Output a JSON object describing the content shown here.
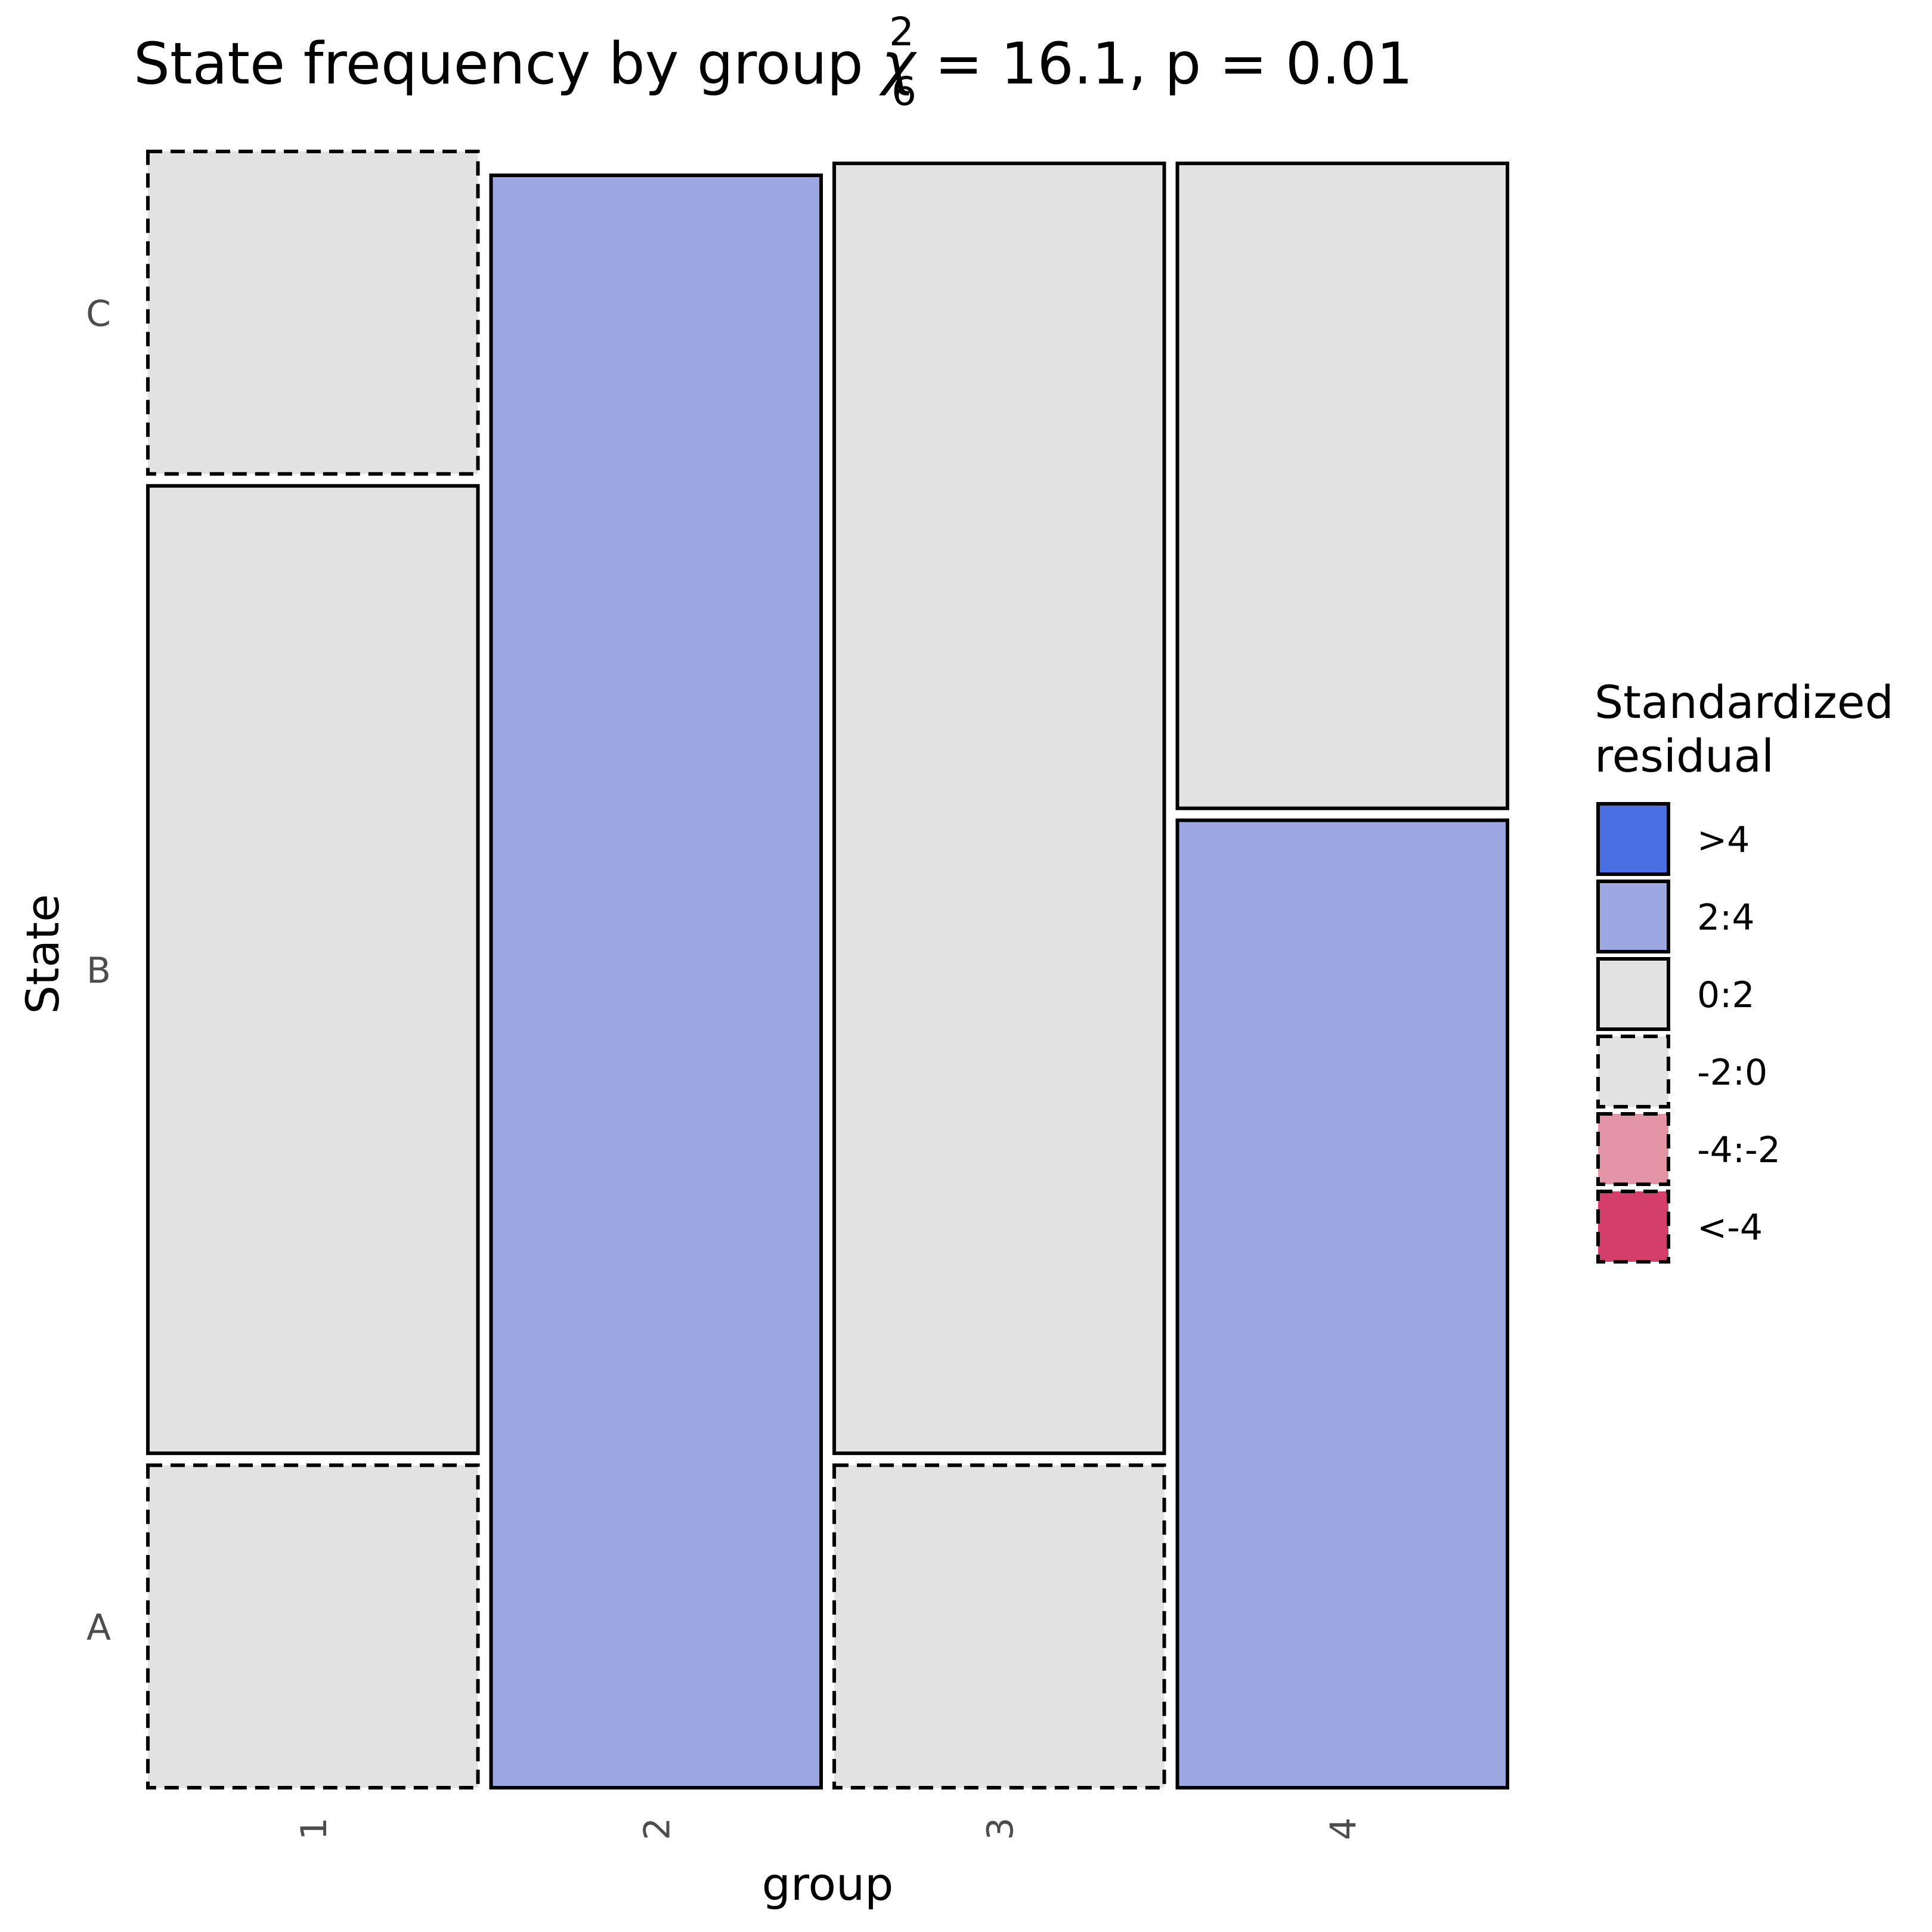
{
  "chart_data": {
    "type": "mosaic",
    "title": {
      "main": "State frequency by group",
      "stat_symbol": "χ",
      "stat_superscript": "2",
      "stat_subscript": "6",
      "stat_equals": " =  16.1, p = 0.01"
    },
    "xlabel": "group",
    "ylabel": "State",
    "x_categories": [
      "1",
      "2",
      "3",
      "4"
    ],
    "y_categories": [
      "A",
      "B",
      "C"
    ],
    "column_proportions": [
      0.25,
      0.25,
      0.25,
      0.25
    ],
    "cells": [
      {
        "group": "1",
        "state": "A",
        "proportion": 0.2,
        "residual_class": "-2:0"
      },
      {
        "group": "1",
        "state": "B",
        "proportion": 0.6,
        "residual_class": "0:2"
      },
      {
        "group": "1",
        "state": "C",
        "proportion": 0.2,
        "residual_class": "-2:0"
      },
      {
        "group": "2",
        "state": "A",
        "proportion": 1.0,
        "residual_class": "2:4"
      },
      {
        "group": "2",
        "state": "B",
        "proportion": 0.0,
        "residual_class": "-2:0"
      },
      {
        "group": "2",
        "state": "C",
        "proportion": 0.0,
        "residual_class": "-2:0"
      },
      {
        "group": "3",
        "state": "A",
        "proportion": 0.2,
        "residual_class": "-2:0"
      },
      {
        "group": "3",
        "state": "B",
        "proportion": 0.8,
        "residual_class": "0:2"
      },
      {
        "group": "3",
        "state": "C",
        "proportion": 0.0,
        "residual_class": "-2:0"
      },
      {
        "group": "4",
        "state": "A",
        "proportion": 0.6,
        "residual_class": "2:4"
      },
      {
        "group": "4",
        "state": "B",
        "proportion": 0.4,
        "residual_class": "0:2"
      },
      {
        "group": "4",
        "state": "C",
        "proportion": 0.0,
        "residual_class": "-2:0"
      }
    ],
    "legend": {
      "title_lines": [
        "Standardized",
        "residual"
      ],
      "placement": "right",
      "items": [
        {
          "label": ">4",
          "color": "#4a6fe3",
          "dashed": false
        },
        {
          "label": "2:4",
          "color": "#9da8e2",
          "dashed": false
        },
        {
          "label": "0:2",
          "color": "#e2e2e2",
          "dashed": false
        },
        {
          "label": "-2:0",
          "color": "#e2e2e2",
          "dashed": true
        },
        {
          "label": "-4:-2",
          "color": "#e495a5",
          "dashed": true
        },
        {
          "label": "<-4",
          "color": "#d33f6a",
          "dashed": true
        }
      ]
    },
    "grid": false
  }
}
